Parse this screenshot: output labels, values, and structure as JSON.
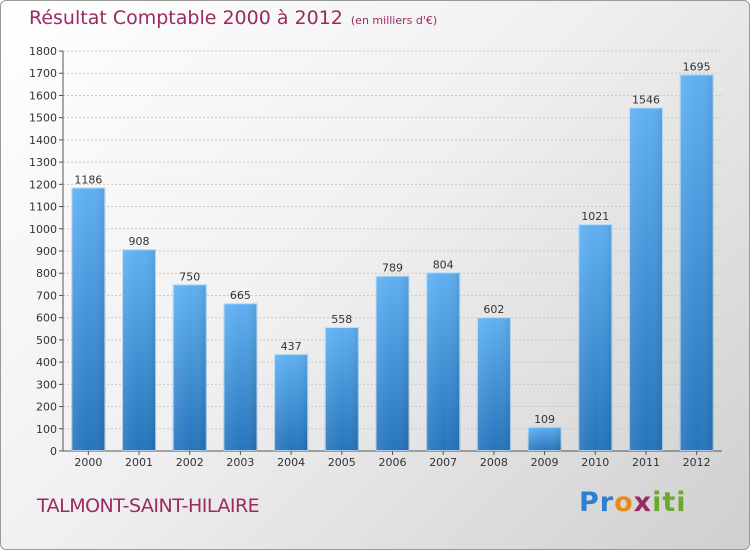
{
  "header": {
    "title": "Résultat Comptable 2000 à 2012",
    "subtitle": "(en milliers d'€)"
  },
  "footer": {
    "commune": "TALMONT-SAINT-HILAIRE",
    "logo_text": "Proxiti"
  },
  "colors": {
    "title": "#9b2a63",
    "bar_top": "#5eaef0",
    "bar_bottom": "#2a78bf"
  },
  "chart_data": {
    "type": "bar",
    "title": "Résultat Comptable 2000 à 2012",
    "subtitle": "(en milliers d'€)",
    "xlabel": "",
    "ylabel": "",
    "categories": [
      "2000",
      "2001",
      "2002",
      "2003",
      "2004",
      "2005",
      "2006",
      "2007",
      "2008",
      "2009",
      "2010",
      "2011",
      "2012"
    ],
    "values": [
      1186,
      908,
      750,
      665,
      437,
      558,
      789,
      804,
      602,
      109,
      1021,
      1546,
      1695
    ],
    "ylim": [
      0,
      1800
    ],
    "yticks": [
      0,
      100,
      200,
      300,
      400,
      500,
      600,
      700,
      800,
      900,
      1000,
      1100,
      1200,
      1300,
      1400,
      1500,
      1600,
      1700,
      1800
    ],
    "grid": true,
    "data_labels": true
  }
}
